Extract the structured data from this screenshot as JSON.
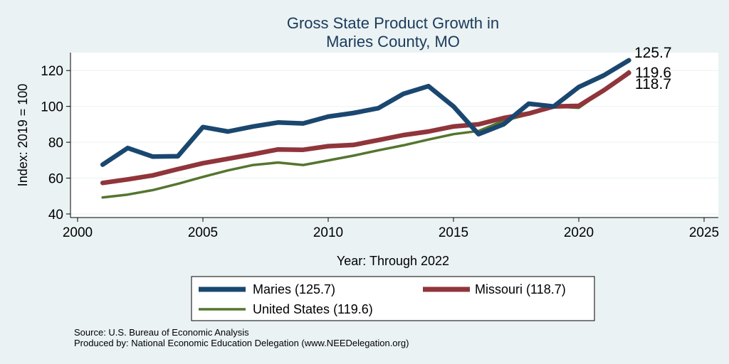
{
  "chart_data": {
    "type": "line",
    "title": [
      "Gross State Product Growth in",
      "Maries County, MO"
    ],
    "xlabel": "Year: Through 2022",
    "ylabel": "Index: 2019 = 100",
    "xlim": [
      2000,
      2025
    ],
    "ylim": [
      38,
      130
    ],
    "xticks": [
      2000,
      2005,
      2010,
      2015,
      2020,
      2025
    ],
    "yticks": [
      40,
      60,
      80,
      100,
      120
    ],
    "x": [
      2001,
      2002,
      2003,
      2004,
      2005,
      2006,
      2007,
      2008,
      2009,
      2010,
      2011,
      2012,
      2013,
      2014,
      2015,
      2016,
      2017,
      2018,
      2019,
      2020,
      2021,
      2022
    ],
    "series": [
      {
        "name": "Maries",
        "legend": "Maries  (125.7)",
        "end_label": "125.7",
        "color": "#1a476f",
        "values": [
          67.5,
          76.8,
          72.0,
          72.2,
          88.5,
          86.0,
          88.8,
          91.0,
          90.5,
          94.3,
          96.3,
          99.0,
          107.0,
          111.3,
          100.0,
          84.5,
          90.0,
          101.5,
          100.0,
          110.8,
          117.3,
          125.7
        ]
      },
      {
        "name": "Missouri",
        "legend": "Missouri (118.7)",
        "end_label": "118.7",
        "color": "#90353b",
        "values": [
          57.3,
          59.3,
          61.5,
          65.0,
          68.3,
          70.8,
          73.3,
          76.0,
          75.8,
          77.8,
          78.5,
          81.2,
          84.0,
          86.0,
          88.8,
          90.0,
          93.5,
          96.0,
          100.0,
          100.3,
          109.0,
          118.7
        ]
      },
      {
        "name": "United States",
        "legend": "United States (119.6)",
        "end_label": "119.6",
        "color": "#55752f",
        "values": [
          49.2,
          50.8,
          53.3,
          56.8,
          60.7,
          64.3,
          67.3,
          68.7,
          67.3,
          69.9,
          72.5,
          75.5,
          78.3,
          81.5,
          84.5,
          86.3,
          92.0,
          95.5,
          100.0,
          99.2,
          109.0,
          119.6
        ]
      }
    ]
  },
  "footer": {
    "source": "Source: U.S. Bureau of Economic Analysis",
    "produced_by": "Produced by: National Economic Education Delegation (www.NEEDelegation.org)"
  }
}
